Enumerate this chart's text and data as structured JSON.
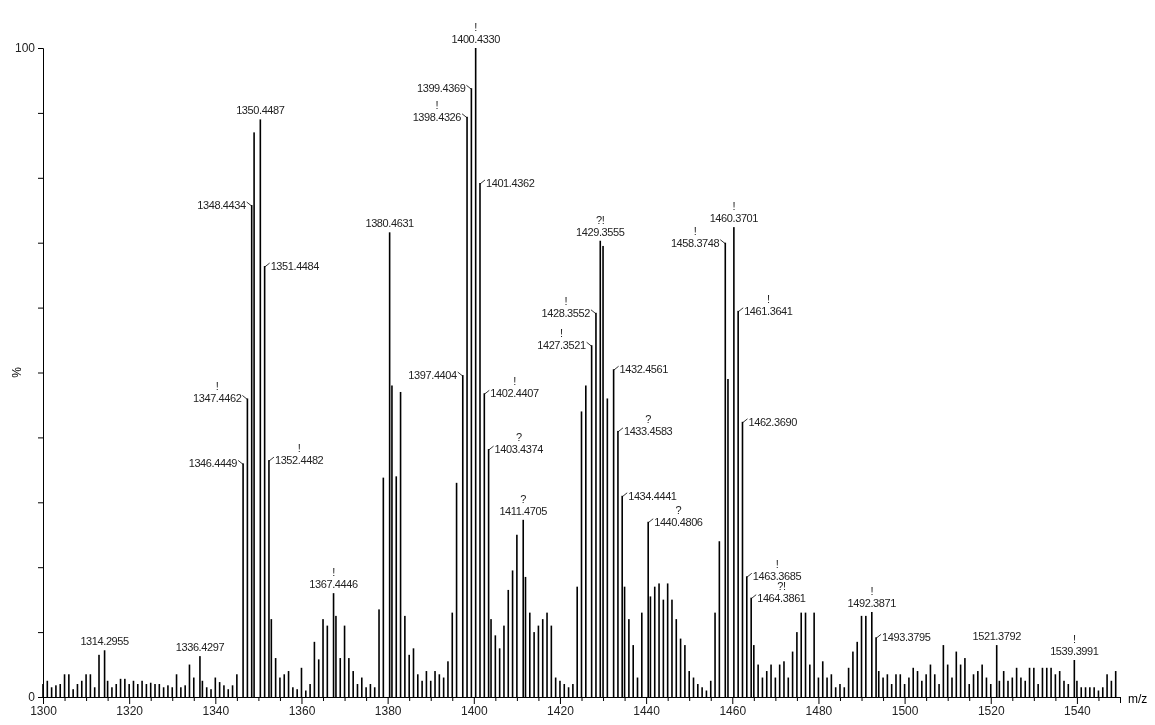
{
  "chart_data": {
    "type": "bar",
    "xlabel": "m/z",
    "ylabel": "%",
    "color": "#000000",
    "x": [
      1300,
      1301,
      1302,
      1303,
      1304,
      1305,
      1306,
      1307,
      1308,
      1309,
      1310,
      1311,
      1312,
      1313,
      1314.2955,
      1315,
      1316,
      1317,
      1318,
      1319,
      1320,
      1321,
      1322,
      1323,
      1324,
      1325,
      1326,
      1327,
      1328,
      1329,
      1330,
      1331,
      1332,
      1333,
      1334,
      1335,
      1336.4297,
      1337,
      1338,
      1339,
      1340,
      1341,
      1342,
      1343,
      1344,
      1345,
      1346.4449,
      1347.4462,
      1348.4434,
      1349,
      1350.4487,
      1351.4484,
      1352.4482,
      1353,
      1354,
      1355,
      1356,
      1357,
      1358,
      1359,
      1360,
      1361,
      1362,
      1363,
      1364,
      1365,
      1366,
      1367.4446,
      1368,
      1369,
      1370,
      1371,
      1372,
      1373,
      1374,
      1375,
      1376,
      1377,
      1378,
      1379,
      1380.4631,
      1381,
      1382,
      1383,
      1384,
      1385,
      1386,
      1387,
      1388,
      1389,
      1390,
      1391,
      1392,
      1393,
      1394,
      1395,
      1396,
      1397.4404,
      1398.4326,
      1399.4369,
      1400.433,
      1401.4362,
      1402.4407,
      1403.4374,
      1404,
      1405,
      1406,
      1407,
      1408,
      1409,
      1410,
      1411.4705,
      1412,
      1413,
      1414,
      1415,
      1416,
      1417,
      1418,
      1419,
      1420,
      1421,
      1422,
      1423,
      1424,
      1425,
      1426,
      1427.3521,
      1428.3552,
      1429.3555,
      1430,
      1431,
      1432.4561,
      1433.4583,
      1434.4441,
      1435,
      1436,
      1437,
      1438,
      1439,
      1440.4806,
      1441,
      1442,
      1443,
      1444,
      1445,
      1446,
      1447,
      1448,
      1449,
      1450,
      1451,
      1452,
      1453,
      1454,
      1455,
      1456,
      1457,
      1458.3748,
      1459,
      1460.3701,
      1461.3641,
      1462.369,
      1463.3685,
      1464.3861,
      1465,
      1466,
      1467,
      1468,
      1469,
      1470,
      1471,
      1472,
      1473,
      1474,
      1475,
      1476,
      1477,
      1478,
      1479,
      1480,
      1481,
      1482,
      1483,
      1484,
      1485,
      1486,
      1487,
      1488,
      1489,
      1490,
      1491,
      1492.3871,
      1493.3795,
      1494,
      1495,
      1496,
      1497,
      1498,
      1499,
      1500,
      1501,
      1502,
      1503,
      1504,
      1505,
      1506,
      1507,
      1508,
      1509,
      1510,
      1511,
      1512,
      1513,
      1514,
      1515,
      1516,
      1517,
      1518,
      1519,
      1520,
      1521.3792,
      1522,
      1523,
      1524,
      1525,
      1526,
      1527,
      1528,
      1529,
      1530,
      1531,
      1532,
      1533,
      1534,
      1535,
      1536,
      1537,
      1538,
      1539.3991,
      1540,
      1541,
      1542,
      1543,
      1544,
      1545,
      1546,
      1547,
      1548,
      1549
    ],
    "values": [
      2,
      2.5,
      1.5,
      1.8,
      2,
      3.5,
      3.5,
      1.2,
      2,
      2.5,
      3.5,
      3.5,
      1.5,
      6.5,
      7.2,
      2.5,
      1.5,
      2,
      2.8,
      2.8,
      2,
      2.5,
      2,
      2.5,
      2,
      2.2,
      2,
      2,
      1.5,
      1.8,
      1.5,
      3.5,
      1.5,
      1.8,
      5,
      3,
      6.3,
      2.5,
      1.5,
      1.2,
      3,
      2.3,
      1.8,
      1.2,
      1.8,
      3.5,
      36,
      46,
      75.8,
      87,
      89,
      66.4,
      36.5,
      12,
      6,
      3,
      3.5,
      4,
      1.5,
      1.2,
      4.5,
      1,
      2,
      8.5,
      5.8,
      12,
      11,
      16,
      12.5,
      6,
      11,
      6,
      4,
      2,
      3,
      1.5,
      2,
      1.5,
      13.5,
      33.8,
      71.6,
      48,
      34,
      47,
      12.5,
      6.5,
      7.5,
      3.5,
      2.5,
      4,
      2.5,
      4,
      3.5,
      3,
      5.5,
      13,
      33,
      49.6,
      89.4,
      93.8,
      100,
      79.2,
      46.8,
      38.2,
      12,
      9.5,
      7.5,
      11,
      16.5,
      19.5,
      25,
      27.3,
      18.5,
      13,
      10,
      11,
      12,
      13,
      11,
      3,
      2.5,
      2,
      1.5,
      2,
      17,
      44,
      48,
      54.2,
      59.2,
      70.3,
      69.5,
      46,
      50.5,
      41,
      31,
      17,
      12,
      8,
      3,
      13,
      27,
      15.5,
      17,
      17.5,
      15,
      17.5,
      15,
      12,
      9,
      8,
      4,
      3,
      2,
      1.5,
      1,
      2.5,
      13,
      24,
      70,
      49,
      72.4,
      59.5,
      42.4,
      18.6,
      15.3,
      8,
      5,
      3,
      4,
      5,
      3,
      5,
      5.5,
      3,
      7,
      10,
      13,
      13,
      5,
      13,
      3,
      5.5,
      3,
      3.5,
      1.5,
      2,
      1.5,
      4.5,
      7,
      8.5,
      12.5,
      12.5,
      13.1,
      9.2,
      4,
      3,
      3.5,
      2,
      3.5,
      3.5,
      2,
      3,
      4.5,
      4,
      2.5,
      3.5,
      5,
      3.5,
      2,
      8,
      5,
      3,
      7,
      5,
      6,
      2,
      3.5,
      4,
      5,
      3,
      2,
      8,
      2.5,
      4,
      2.5,
      3,
      4.5,
      3,
      2.5,
      4.5,
      4.5,
      2,
      4.5,
      4.5,
      4.5,
      3.5,
      4,
      2.5,
      2,
      5.7,
      2.5,
      1.5,
      1.5,
      1.5,
      1.5,
      1,
      1.5,
      3.5,
      2.5,
      4
    ],
    "annotations": [
      {
        "text": "1314.2955",
        "x": 1314.2955,
        "y": 7.2
      },
      {
        "text": "1336.4297",
        "x": 1336.4297,
        "y": 6.3
      },
      {
        "text": "1346.4449",
        "x": 1346.4449,
        "y": 36
      },
      {
        "text": "!\n1347.4462",
        "x": 1347.4462,
        "y": 46
      },
      {
        "text": "1348.4434",
        "x": 1348.4434,
        "y": 75.8
      },
      {
        "text": "1350.4487",
        "x": 1350.4487,
        "y": 89
      },
      {
        "text": "1351.4484",
        "x": 1351.4484,
        "y": 66.4
      },
      {
        "text": "!\n1352.4482",
        "x": 1352.4482,
        "y": 36.5
      },
      {
        "text": "!\n1367.4446",
        "x": 1367.4446,
        "y": 16
      },
      {
        "text": "1380.4631",
        "x": 1380.4631,
        "y": 71.6
      },
      {
        "text": "1397.4404",
        "x": 1397.4404,
        "y": 49.6
      },
      {
        "text": "!\n1398.4326",
        "x": 1398.4326,
        "y": 89.4
      },
      {
        "text": "1399.4369",
        "x": 1399.4369,
        "y": 93.8
      },
      {
        "text": "!\n1400.4330",
        "x": 1400.433,
        "y": 100
      },
      {
        "text": "1401.4362",
        "x": 1401.4362,
        "y": 79.2
      },
      {
        "text": "!\n1402.4407",
        "x": 1402.4407,
        "y": 46.8
      },
      {
        "text": "?\n1403.4374",
        "x": 1403.4374,
        "y": 38.2
      },
      {
        "text": "?\n1411.4705",
        "x": 1411.4705,
        "y": 27.3
      },
      {
        "text": "!\n1427.3521",
        "x": 1427.3521,
        "y": 54.2
      },
      {
        "text": "!\n1428.3552",
        "x": 1428.3552,
        "y": 59.2
      },
      {
        "text": "?!\n1429.3555",
        "x": 1429.3555,
        "y": 70.3
      },
      {
        "text": "1432.4561",
        "x": 1432.4561,
        "y": 50.5
      },
      {
        "text": "?\n1433.4583",
        "x": 1433.4583,
        "y": 41
      },
      {
        "text": "1434.4441",
        "x": 1434.4441,
        "y": 31
      },
      {
        "text": "?\n1440.4806",
        "x": 1440.4806,
        "y": 27
      },
      {
        "text": "!\n1458.3748",
        "x": 1458.3748,
        "y": 70
      },
      {
        "text": "!\n1460.3701",
        "x": 1460.3701,
        "y": 72.4
      },
      {
        "text": "!\n1461.3641",
        "x": 1461.3641,
        "y": 59.5
      },
      {
        "text": "1462.3690",
        "x": 1462.369,
        "y": 42.4
      },
      {
        "text": "!\n1463.3685",
        "x": 1463.3685,
        "y": 18.6
      },
      {
        "text": "?!\n1464.3861",
        "x": 1464.3861,
        "y": 15.3
      },
      {
        "text": "!\n1492.3871",
        "x": 1492.3871,
        "y": 13.1
      },
      {
        "text": "1493.3795",
        "x": 1493.3795,
        "y": 9.2
      },
      {
        "text": "1521.3792",
        "x": 1521.3792,
        "y": 8
      },
      {
        "text": "!\n1539.3991",
        "x": 1539.3991,
        "y": 5.7
      }
    ],
    "xlim": [
      1300,
      1550
    ],
    "xticks": [
      1300,
      {
        "value": 1305,
        "label": null
      },
      {
        "value": 1310,
        "label": null
      },
      {
        "value": 1315,
        "label": null
      },
      1320,
      {
        "value": 1325,
        "label": null
      },
      {
        "value": 1330,
        "label": null
      },
      {
        "value": 1335,
        "label": null
      },
      1340,
      {
        "value": 1345,
        "label": null
      },
      {
        "value": 1350,
        "label": null
      },
      {
        "value": 1355,
        "label": null
      },
      1360,
      {
        "value": 1365,
        "label": null
      },
      {
        "value": 1370,
        "label": null
      },
      {
        "value": 1375,
        "label": null
      },
      1380,
      {
        "value": 1385,
        "label": null
      },
      {
        "value": 1390,
        "label": null
      },
      {
        "value": 1395,
        "label": null
      },
      1400,
      {
        "value": 1405,
        "label": null
      },
      {
        "value": 1410,
        "label": null
      },
      {
        "value": 1415,
        "label": null
      },
      1420,
      {
        "value": 1425,
        "label": null
      },
      {
        "value": 1430,
        "label": null
      },
      {
        "value": 1435,
        "label": null
      },
      1440,
      {
        "value": 1445,
        "label": null
      },
      {
        "value": 1450,
        "label": null
      },
      {
        "value": 1455,
        "label": null
      },
      1460,
      {
        "value": 1465,
        "label": null
      },
      {
        "value": 1470,
        "label": null
      },
      {
        "value": 1475,
        "label": null
      },
      1480,
      {
        "value": 1485,
        "label": null
      },
      {
        "value": 1490,
        "label": null
      },
      {
        "value": 1495,
        "label": null
      },
      1500,
      {
        "value": 1505,
        "label": null
      },
      {
        "value": 1510,
        "label": null
      },
      {
        "value": 1515,
        "label": null
      },
      1520,
      {
        "value": 1525,
        "label": null
      },
      {
        "value": 1530,
        "label": null
      },
      {
        "value": 1535,
        "label": null
      },
      1540,
      {
        "value": 1545,
        "label": null
      },
      {
        "value": 1550,
        "label": null
      }
    ],
    "ylim": [
      0,
      100
    ],
    "yticks": [
      0,
      {
        "value": 10,
        "label": null
      },
      {
        "value": 20,
        "label": null
      },
      {
        "value": 30,
        "label": null
      },
      {
        "value": 40,
        "label": null
      },
      {
        "value": 50,
        "label": null
      },
      {
        "value": 60,
        "label": null
      },
      {
        "value": 70,
        "label": null
      },
      {
        "value": 80,
        "label": null
      },
      {
        "value": 90,
        "label": null
      },
      100
    ]
  }
}
